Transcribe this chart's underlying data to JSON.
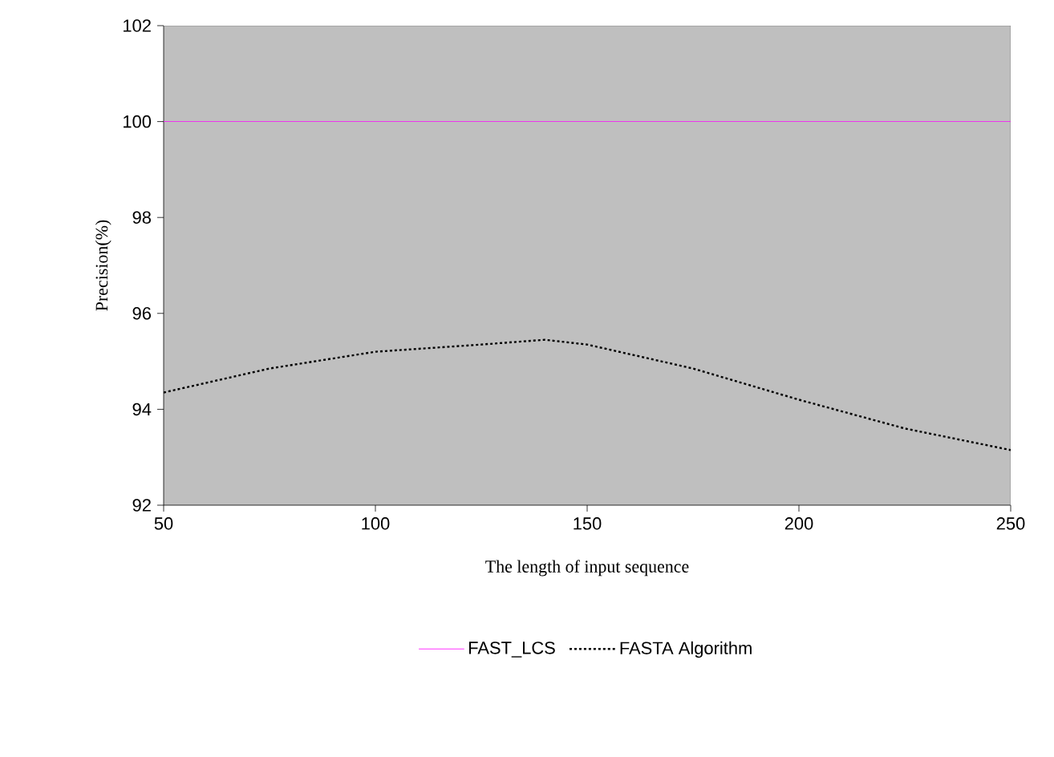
{
  "chart_data": {
    "type": "line",
    "xlabel": "The length of input sequence",
    "ylabel": "Precision(%)",
    "xlim": [
      50,
      250
    ],
    "ylim": [
      92,
      102
    ],
    "xticks": [
      50,
      100,
      150,
      200,
      250
    ],
    "yticks": [
      92,
      94,
      96,
      98,
      100,
      102
    ],
    "grid": false,
    "legend": "bottom",
    "marker": "none",
    "series": [
      {
        "name": "FAST_LCS",
        "color": "#ff00ff",
        "line_style": "solid",
        "x": [
          50,
          250
        ],
        "values": [
          100,
          100
        ]
      },
      {
        "name": "FASTA Algorithm",
        "color": "#000000",
        "line_style": "dotted",
        "x": [
          50,
          60,
          75,
          100,
          125,
          140,
          150,
          175,
          200,
          225,
          250
        ],
        "values": [
          94.35,
          94.55,
          94.85,
          95.2,
          95.35,
          95.45,
          95.35,
          94.85,
          94.2,
          93.6,
          93.15
        ]
      }
    ]
  }
}
